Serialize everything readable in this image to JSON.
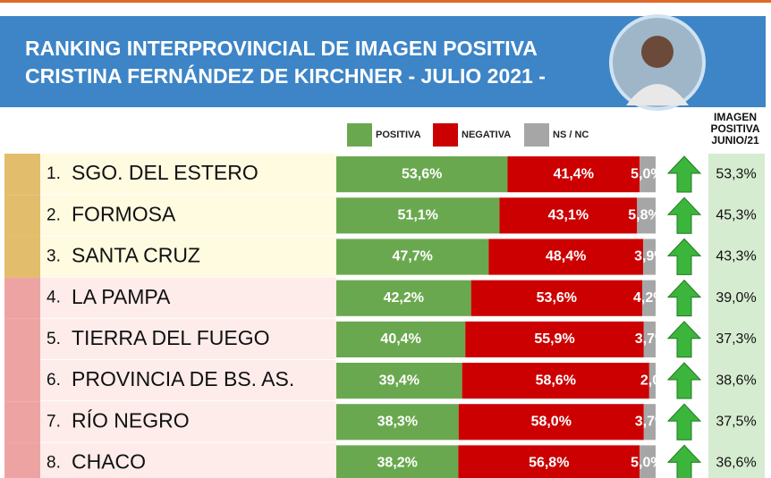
{
  "chart_data": {
    "type": "bar",
    "orientation": "horizontal",
    "stacked": true,
    "title": "RANKING INTERPROVINCIAL DE IMAGEN POSITIVA",
    "subtitle": "CRISTINA FERNÁNDEZ DE KIRCHNER - JULIO 2021 -",
    "ranks": [
      "1.",
      "2.",
      "3.",
      "4.",
      "5.",
      "6.",
      "7.",
      "8."
    ],
    "categories": [
      "SGO. DEL ESTERO",
      "FORMOSA",
      "SANTA CRUZ",
      "LA PAMPA",
      "TIERRA DEL FUEGO",
      "PROVINCIA DE BS. AS.",
      "RÍO NEGRO",
      "CHACO"
    ],
    "series": [
      {
        "name": "POSITIVA",
        "color": "#6aa84f",
        "values": [
          53.6,
          51.1,
          47.7,
          42.2,
          40.4,
          39.4,
          38.3,
          38.2
        ],
        "value_labels": [
          "53,6%",
          "51,1%",
          "47,7%",
          "42,2%",
          "40,4%",
          "39,4%",
          "38,3%",
          "38,2%"
        ]
      },
      {
        "name": "NEGATIVA",
        "color": "#cc0000",
        "values": [
          41.4,
          43.1,
          48.4,
          53.6,
          55.9,
          58.6,
          58.0,
          56.8
        ],
        "value_labels": [
          "41,4%",
          "43,1%",
          "48,4%",
          "53,6%",
          "55,9%",
          "58,6%",
          "58,0%",
          "56,8%"
        ]
      },
      {
        "name": "NS / NC",
        "color": "#a6a6a6",
        "values": [
          5.0,
          5.8,
          3.9,
          4.2,
          3.7,
          2.0,
          3.7,
          5.0
        ],
        "value_labels": [
          "5,0%",
          "5,8%",
          "3,9%",
          "4,2%",
          "3,7%",
          "2,0%",
          "3,7%",
          "5,0%"
        ]
      }
    ],
    "previous": {
      "header": [
        "IMAGEN",
        "POSITIVA",
        "JUNIO/21"
      ],
      "values": [
        53.3,
        45.3,
        43.3,
        39.0,
        37.3,
        38.6,
        37.5,
        36.6
      ],
      "value_labels": [
        "53,3%",
        "45,3%",
        "43,3%",
        "39,0%",
        "37,3%",
        "38,6%",
        "37,5%",
        "36,6%"
      ]
    }
  }
}
